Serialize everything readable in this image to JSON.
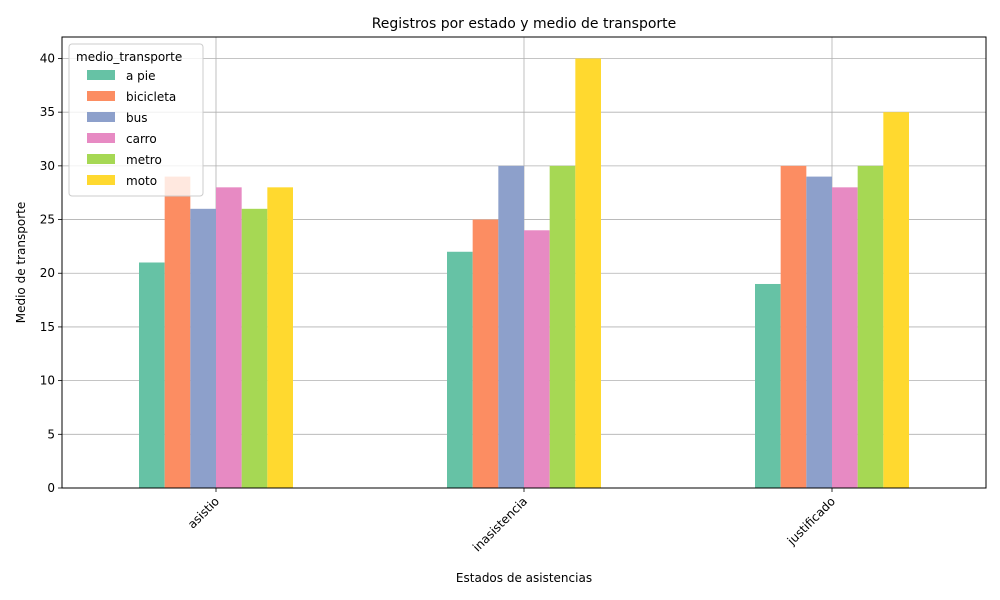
{
  "chart_data": {
    "type": "bar",
    "title": "Registros por estado y medio de transporte",
    "xlabel": "Estados de asistencias",
    "ylabel": "Medio de transporte",
    "categories": [
      "asistio",
      "inasistencia",
      "justificado"
    ],
    "ylim": [
      0,
      42
    ],
    "yticks": [
      0,
      5,
      10,
      15,
      20,
      25,
      30,
      35,
      40
    ],
    "grid": true,
    "legend_title": "medio_transporte",
    "legend_position": "top-left",
    "series": [
      {
        "name": "a pie",
        "color": "#66c2a5",
        "values": [
          21,
          22,
          19
        ]
      },
      {
        "name": "bicicleta",
        "color": "#fc8d62",
        "values": [
          29,
          25,
          30
        ]
      },
      {
        "name": "bus",
        "color": "#8da0cb",
        "values": [
          26,
          30,
          29
        ]
      },
      {
        "name": "carro",
        "color": "#e78ac3",
        "values": [
          28,
          24,
          28
        ]
      },
      {
        "name": "metro",
        "color": "#a6d854",
        "values": [
          26,
          30,
          30
        ]
      },
      {
        "name": "moto",
        "color": "#ffd92f",
        "values": [
          28,
          40,
          35
        ]
      }
    ]
  }
}
